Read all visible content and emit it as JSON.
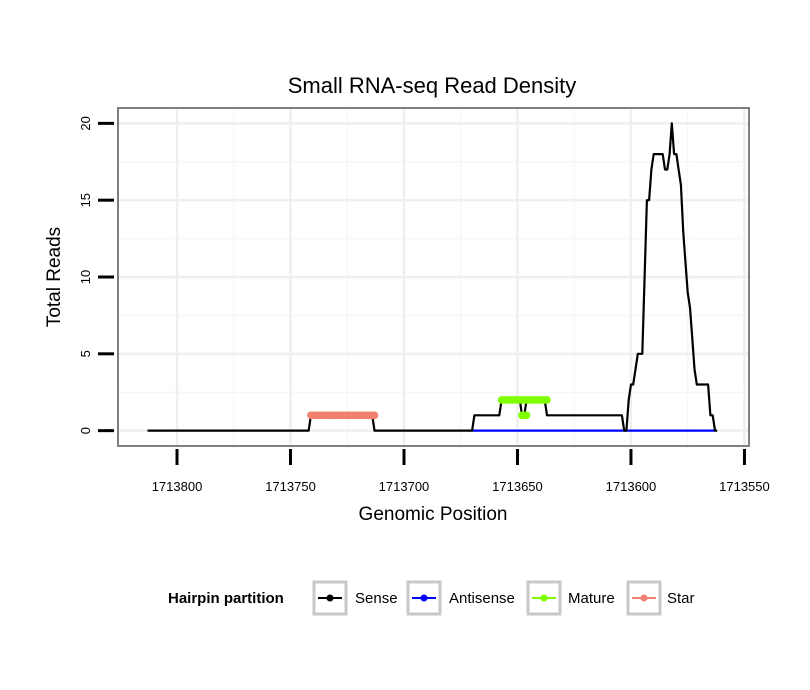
{
  "chart_data": {
    "type": "line",
    "title": "Small RNA-seq Read Density",
    "xlabel": "Genomic Position",
    "ylabel": "Total Reads",
    "x_reversed": true,
    "xlim": [
      1713826,
      1713548
    ],
    "ylim": [
      -1,
      21
    ],
    "x_ticks": [
      1713800,
      1713750,
      1713700,
      1713650,
      1713600,
      1713550
    ],
    "x_tick_labels": [
      "1713800",
      "1713750",
      "1713700",
      "1713650",
      "1713600",
      "1713550"
    ],
    "y_ticks": [
      0,
      5,
      10,
      15,
      20
    ],
    "y_tick_labels": [
      "0",
      "5",
      "10",
      "15",
      "20"
    ],
    "grid": true,
    "legend": {
      "title": "Hairpin partition",
      "position": "bottom",
      "entries": [
        {
          "name": "Sense",
          "color": "#000000"
        },
        {
          "name": "Antisense",
          "color": "#0000ff"
        },
        {
          "name": "Mature",
          "color": "#7fff00"
        },
        {
          "name": "Star",
          "color": "#f08070"
        }
      ]
    },
    "series": [
      {
        "name": "Sense",
        "color": "#000000",
        "style": "line",
        "points": [
          [
            1713813,
            0
          ],
          [
            1713742,
            0
          ],
          [
            1713741,
            1
          ],
          [
            1713714,
            1
          ],
          [
            1713713,
            0
          ],
          [
            1713670,
            0
          ],
          [
            1713669,
            1
          ],
          [
            1713658,
            1
          ],
          [
            1713657,
            2
          ],
          [
            1713649,
            2
          ],
          [
            1713648,
            1
          ],
          [
            1713647,
            1
          ],
          [
            1713646,
            2
          ],
          [
            1713638,
            2
          ],
          [
            1713637,
            1
          ],
          [
            1713604,
            1
          ],
          [
            1713603,
            0
          ],
          [
            1713602,
            0
          ],
          [
            1713601,
            2
          ],
          [
            1713600,
            3
          ],
          [
            1713599,
            3
          ],
          [
            1713598,
            4
          ],
          [
            1713597,
            5
          ],
          [
            1713595,
            5
          ],
          [
            1713594,
            10
          ],
          [
            1713593,
            15
          ],
          [
            1713592,
            15
          ],
          [
            1713591,
            17
          ],
          [
            1713590,
            18
          ],
          [
            1713586,
            18
          ],
          [
            1713585,
            17
          ],
          [
            1713584,
            17
          ],
          [
            1713583,
            18
          ],
          [
            1713582,
            20
          ],
          [
            1713581,
            18
          ],
          [
            1713580,
            18
          ],
          [
            1713579,
            17
          ],
          [
            1713578,
            16
          ],
          [
            1713577,
            13
          ],
          [
            1713576,
            11
          ],
          [
            1713575,
            9
          ],
          [
            1713574,
            8
          ],
          [
            1713573,
            6
          ],
          [
            1713572,
            4
          ],
          [
            1713571,
            3
          ],
          [
            1713566,
            3
          ],
          [
            1713565,
            1
          ],
          [
            1713564,
            1
          ],
          [
            1713563,
            0
          ],
          [
            1713562,
            0
          ]
        ]
      },
      {
        "name": "Antisense",
        "color": "#0000ff",
        "style": "line",
        "points": [
          [
            1713670,
            0
          ],
          [
            1713563,
            0
          ]
        ]
      },
      {
        "name": "Mature",
        "color": "#7fff00",
        "style": "dots",
        "segments": [
          {
            "x_start": 1713657,
            "x_end": 1713647,
            "y": 2
          },
          {
            "x_start": 1713648,
            "x_end": 1713646,
            "y": 1
          },
          {
            "x_start": 1713646,
            "x_end": 1713637,
            "y": 2
          }
        ]
      },
      {
        "name": "Star",
        "color": "#f08070",
        "style": "dots",
        "segments": [
          {
            "x_start": 1713741,
            "x_end": 1713713,
            "y": 1
          }
        ]
      }
    ]
  }
}
